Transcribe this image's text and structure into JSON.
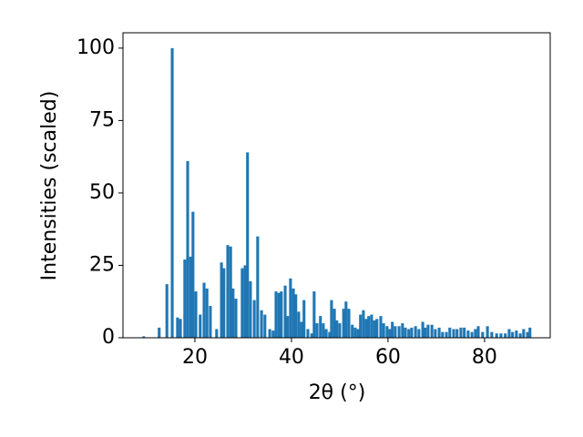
{
  "chart_data": {
    "type": "bar",
    "xlabel": "2θ (°)",
    "ylabel": "Intensities (scaled)",
    "color": "#1f77b4",
    "x": [
      9.4,
      12.6,
      14.2,
      15.3,
      16.4,
      17.0,
      17.9,
      18.5,
      19.1,
      19.6,
      20.2,
      21.1,
      21.9,
      22.5,
      23.2,
      24.5,
      25.5,
      26.0,
      26.8,
      27.4,
      27.9,
      28.5,
      29.8,
      30.4,
      30.9,
      31.5,
      32.3,
      33.0,
      33.8,
      34.5,
      35.5,
      36.2,
      36.8,
      37.4,
      37.9,
      38.7,
      39.2,
      39.8,
      40.4,
      40.9,
      41.5,
      42.1,
      42.6,
      43.4,
      44.2,
      44.7,
      45.3,
      46.0,
      46.6,
      47.2,
      47.9,
      48.3,
      48.9,
      49.4,
      50.0,
      50.8,
      51.3,
      51.9,
      52.6,
      53.2,
      53.8,
      54.3,
      54.9,
      55.5,
      56.0,
      56.6,
      57.2,
      57.7,
      58.5,
      59.1,
      59.8,
      60.4,
      60.9,
      61.5,
      62.3,
      63.0,
      63.6,
      64.3,
      64.9,
      65.7,
      66.4,
      67.2,
      67.7,
      68.3,
      69.1,
      69.8,
      70.6,
      71.3,
      72.1,
      72.8,
      73.6,
      74.3,
      75.1,
      75.8,
      76.6,
      77.4,
      78.1,
      78.7,
      79.6,
      80.6,
      81.5,
      82.5,
      83.4,
      84.3,
      85.1,
      85.8,
      86.6,
      87.4,
      88.1,
      88.9,
      89.4
    ],
    "values": [
      0.5,
      3.5,
      18.5,
      100,
      7,
      6.5,
      27,
      61,
      28,
      43.5,
      16,
      8,
      19,
      17,
      11,
      3,
      26,
      24,
      32,
      31.5,
      17,
      13.5,
      24,
      25,
      64,
      19.5,
      13,
      35,
      9.5,
      8,
      3,
      2.5,
      16,
      15.5,
      16,
      18,
      7.5,
      20.5,
      17,
      15,
      9,
      5.5,
      13,
      3,
      1.5,
      16,
      5,
      7.5,
      5,
      3,
      2,
      13,
      10,
      6,
      5,
      10,
      12.5,
      10,
      4.5,
      3.5,
      3,
      8,
      9.5,
      6.5,
      7.5,
      8,
      6,
      6.5,
      7.5,
      5,
      4,
      3,
      5.5,
      4,
      4,
      5,
      3.5,
      3,
      3.5,
      4,
      3,
      5.5,
      3.5,
      4.5,
      4.5,
      3,
      3.5,
      2,
      2,
      3.5,
      3,
      3,
      3.5,
      3.5,
      2.5,
      2,
      3,
      4,
      2,
      4,
      2,
      1.5,
      1.5,
      1.5,
      3,
      2,
      2.5,
      1.5,
      3,
      2,
      3.5
    ],
    "xlim": [
      5.1,
      93.6
    ],
    "xticks": [
      20,
      40,
      60,
      80
    ],
    "ylim": [
      0,
      105.3
    ],
    "yticks": [
      0,
      25,
      50,
      75,
      100
    ]
  }
}
